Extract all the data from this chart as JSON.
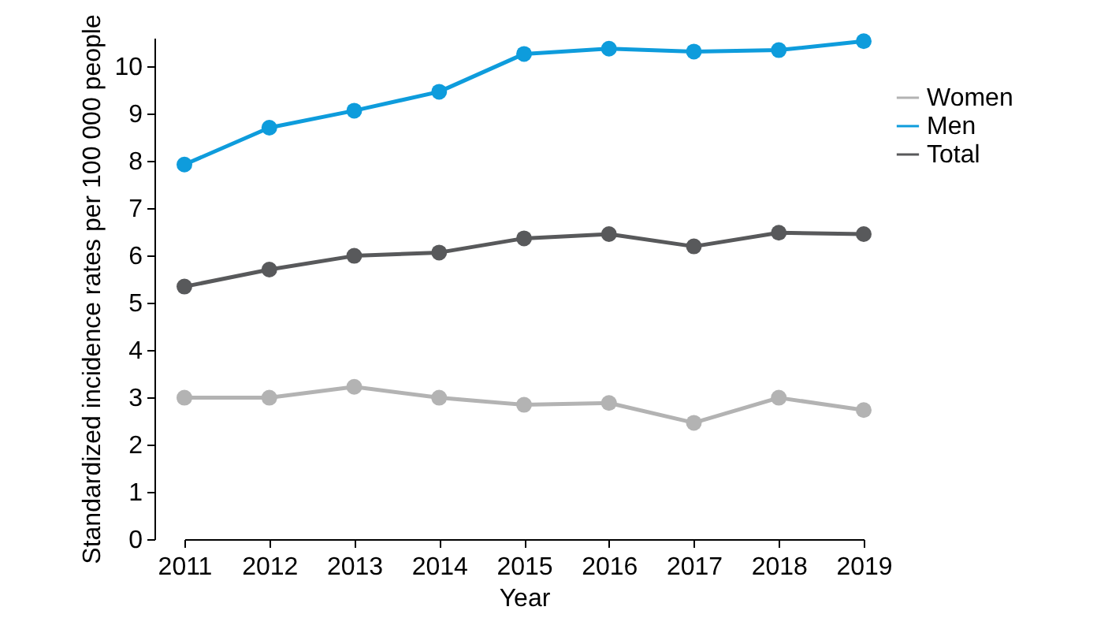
{
  "chart_data": {
    "type": "line",
    "xlabel": "Year",
    "ylabel": "Standardized incidence rates per 100 000 people",
    "categories": [
      "2011",
      "2012",
      "2013",
      "2014",
      "2015",
      "2016",
      "2017",
      "2018",
      "2019"
    ],
    "series": [
      {
        "name": "Women",
        "color": "#b3b3b3",
        "values": [
          2.99,
          2.99,
          3.22,
          2.99,
          2.84,
          2.88,
          2.46,
          2.99,
          2.73
        ]
      },
      {
        "name": "Men",
        "color": "#0e9cdc",
        "values": [
          7.92,
          8.7,
          9.06,
          9.46,
          10.26,
          10.37,
          10.31,
          10.34,
          10.53
        ]
      },
      {
        "name": "Total",
        "color": "#58595b",
        "values": [
          5.34,
          5.7,
          5.99,
          6.06,
          6.36,
          6.45,
          6.19,
          6.48,
          6.45
        ]
      }
    ],
    "ylim": [
      0,
      10.6
    ],
    "yticks": [
      0,
      1,
      2,
      3,
      4,
      5,
      6,
      7,
      8,
      9,
      10
    ],
    "grid": false,
    "legend": "top right",
    "marker": "circle",
    "line_style": "solid"
  }
}
